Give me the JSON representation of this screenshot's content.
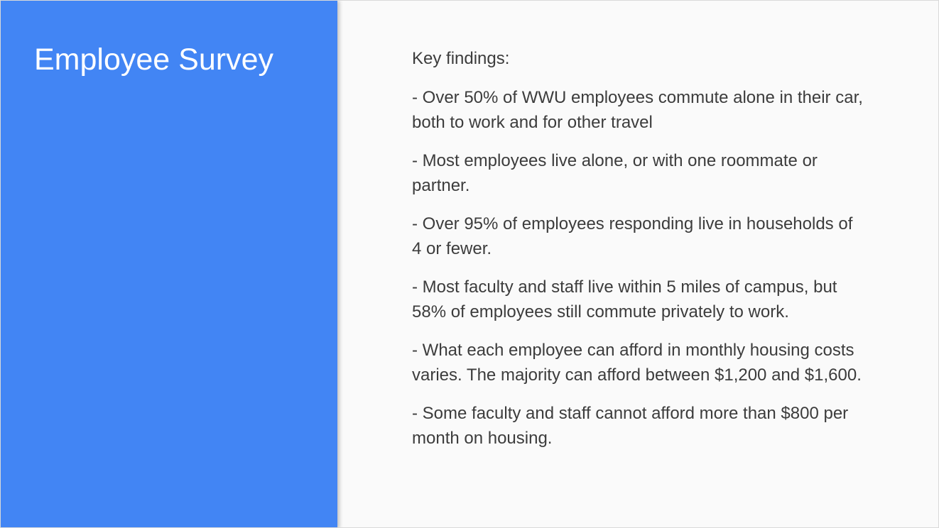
{
  "slide": {
    "title": "Employee Survey",
    "heading": "Key findings:",
    "findings": [
      "- Over 50% of WWU employees commute alone in their car, both to work and for other travel",
      "- Most employees live alone, or with one roommate or partner.",
      "- Over 95% of employees responding live in households of 4 or fewer.",
      "- Most faculty and staff live within 5 miles of campus, but 58% of employees still commute privately to work.",
      "- What each employee can afford in monthly housing costs varies. The majority can afford between $1,200 and $1,600.",
      "- Some faculty and staff cannot afford more than $800 per month on housing."
    ]
  },
  "colors": {
    "accent_panel": "#4285f4",
    "background": "#fafafa",
    "title_text": "#ffffff",
    "body_text": "#3c3c3c"
  }
}
